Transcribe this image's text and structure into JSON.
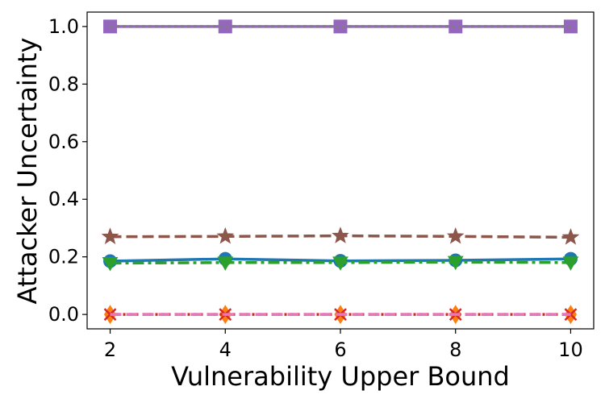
{
  "chart_data": {
    "type": "line",
    "title": "",
    "xlabel": "Vulnerability Upper Bound",
    "ylabel": "Attacker Uncertainty",
    "x": [
      2,
      4,
      6,
      8,
      10
    ],
    "xticks": [
      "2",
      "4",
      "6",
      "8",
      "10"
    ],
    "yticks": [
      "0.0",
      "0.2",
      "0.4",
      "0.6",
      "0.8",
      "1.0"
    ],
    "xlim": [
      1.6,
      10.4
    ],
    "ylim": [
      -0.05,
      1.05
    ],
    "grid": false,
    "legend": "none",
    "series": [
      {
        "values": [
          0.185,
          0.193,
          0.186,
          0.188,
          0.193
        ],
        "color": "#1f77b4",
        "dash": "solid",
        "marker": "circle"
      },
      {
        "values": [
          0.0,
          0.0,
          0.0,
          0.0,
          0.0
        ],
        "color": "#ff7f0e",
        "dash": "dashed",
        "marker": "diamond"
      },
      {
        "values": [
          0.178,
          0.18,
          0.18,
          0.182,
          0.18
        ],
        "color": "#2ca02c",
        "dash": "dashdot",
        "marker": "triangle-down"
      },
      {
        "values": [
          0.0,
          0.0,
          0.0,
          0.0,
          0.0
        ],
        "color": "#d62728",
        "dash": "dotted",
        "marker": "x"
      },
      {
        "values": [
          1.0,
          1.0,
          1.0,
          1.0,
          1.0
        ],
        "color": "#9467bd",
        "dash": "solid",
        "marker": "square"
      },
      {
        "values": [
          0.27,
          0.271,
          0.273,
          0.271,
          0.268
        ],
        "color": "#8c564b",
        "dash": "dashed",
        "marker": "star"
      },
      {
        "values": [
          0.0,
          0.0,
          0.0,
          0.0,
          0.0
        ],
        "color": "#e377c2",
        "dash": "dashed",
        "marker": "none"
      },
      {
        "values": [
          1.0,
          1.0,
          1.0,
          1.0,
          1.0
        ],
        "color": "#7f7f7f",
        "dash": "dotted",
        "marker": "none"
      }
    ]
  }
}
